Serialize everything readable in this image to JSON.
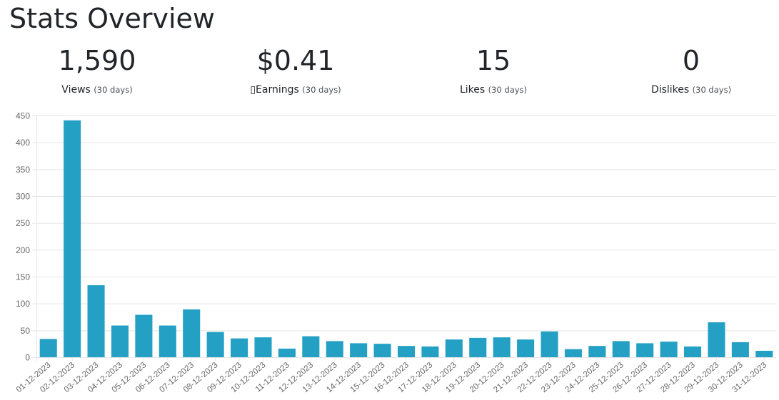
{
  "page": {
    "title": "Stats Overview"
  },
  "stats": [
    {
      "value": "1,590",
      "label": "Views",
      "period": "(30 days)",
      "icon": ""
    },
    {
      "value": "$0.41",
      "label": "Earnings",
      "period": "(30 days)",
      "icon": "▯"
    },
    {
      "value": "15",
      "label": "Likes",
      "period": "(30 days)",
      "icon": ""
    },
    {
      "value": "0",
      "label": "Dislikes",
      "period": "(30 days)",
      "icon": ""
    }
  ],
  "chart_data": {
    "type": "bar",
    "categories": [
      "01-12-2023",
      "02-12-2023",
      "03-12-2023",
      "04-12-2023",
      "05-12-2023",
      "06-12-2023",
      "07-12-2023",
      "08-12-2023",
      "09-12-2023",
      "10-12-2023",
      "11-12-2023",
      "12-12-2023",
      "13-12-2023",
      "14-12-2023",
      "15-12-2023",
      "16-12-2023",
      "17-12-2023",
      "18-12-2023",
      "19-12-2023",
      "20-12-2023",
      "21-12-2023",
      "22-12-2023",
      "23-12-2023",
      "24-12-2023",
      "25-12-2023",
      "26-12-2023",
      "27-12-2023",
      "28-12-2023",
      "29-12-2023",
      "30-12-2023",
      "31-12-2023"
    ],
    "values": [
      34,
      441,
      134,
      59,
      79,
      59,
      89,
      47,
      35,
      37,
      16,
      39,
      30,
      26,
      25,
      21,
      20,
      33,
      36,
      37,
      33,
      48,
      15,
      21,
      30,
      26,
      29,
      20,
      65,
      28,
      12
    ],
    "ylim": [
      0,
      450
    ],
    "yticks": [
      0,
      50,
      100,
      150,
      200,
      250,
      300,
      350,
      400,
      450
    ],
    "grid": true,
    "bar_color": "#23a0c4",
    "grid_color": "#e5e5e5",
    "tick_color": "#666666"
  }
}
